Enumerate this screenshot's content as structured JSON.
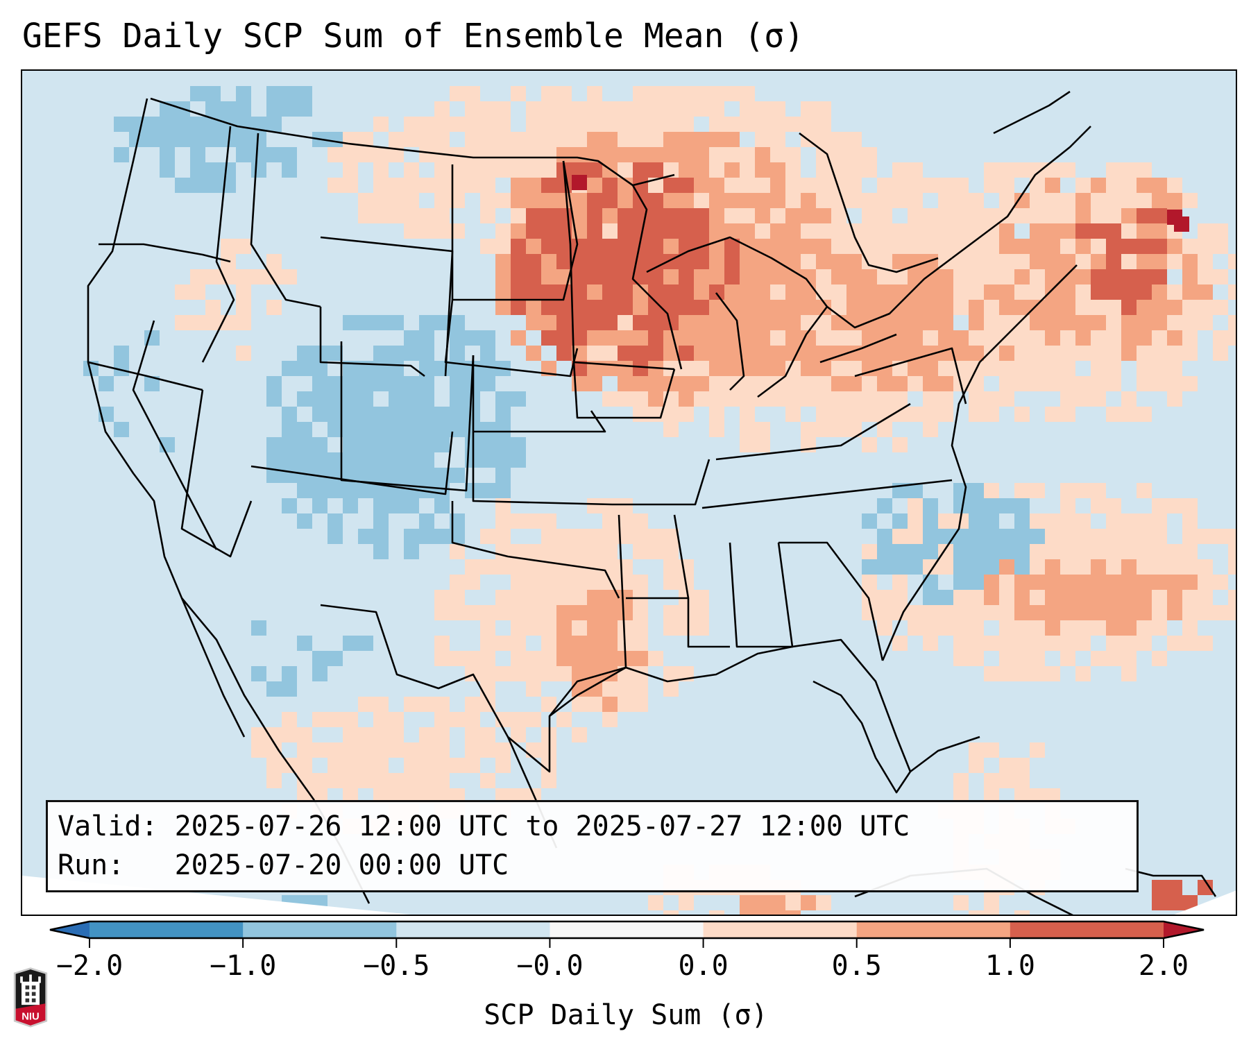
{
  "title": "GEFS Daily SCP Sum of Ensemble Mean (σ)",
  "info_box": {
    "valid_line": "Valid: 2025-07-26 12:00 UTC to 2025-07-27 12:00 UTC",
    "run_line": "Run:   2025-07-20 00:00 UTC"
  },
  "colorbar": {
    "label": "SCP Daily Sum (σ)",
    "ticks": [
      "−2.0",
      "−1.0",
      "−0.5",
      "−0.0",
      "0.0",
      "0.5",
      "1.0",
      "2.0"
    ],
    "extend": "both",
    "bins": [
      {
        "range": "< -2.0",
        "color": "#2a6db5"
      },
      {
        "range": "-2.0 to -1.0",
        "color": "#4393c3"
      },
      {
        "range": "-1.0 to -0.5",
        "color": "#92c5de"
      },
      {
        "range": "-0.5 to -0.0",
        "color": "#d1e5f0"
      },
      {
        "range": "-0.0 to 0.0",
        "color": "#f7f7f7"
      },
      {
        "range": "0.0 to 0.5",
        "color": "#fddbc7"
      },
      {
        "range": "0.5 to 1.0",
        "color": "#f4a582"
      },
      {
        "range": "1.0 to 2.0",
        "color": "#d6604d"
      },
      {
        "range": "> 2.0",
        "color": "#b2182b"
      }
    ]
  },
  "map": {
    "region": "Continental United States",
    "projection": "Lambert Conformal",
    "background_color": "#d1e5f0",
    "anomaly_regions": [
      {
        "name": "Northern Plains / Upper Midwest",
        "category": "1.0 to 2.0"
      },
      {
        "name": "Great Lakes / Northeast",
        "category": "0.5 to 1.0"
      },
      {
        "name": "Central Texas",
        "category": "0.5 to 1.0"
      },
      {
        "name": "Western Atlantic",
        "category": "0.5 to 1.0"
      },
      {
        "name": "Central Rockies (UT/CO/WY)",
        "category": "-1.0 to -0.5"
      },
      {
        "name": "Carolinas / Tennessee",
        "category": "-1.0 to -0.5"
      },
      {
        "name": "Pacific Northwest",
        "category": "-1.0 to -0.5"
      }
    ]
  },
  "logo": {
    "text": "NIU"
  }
}
